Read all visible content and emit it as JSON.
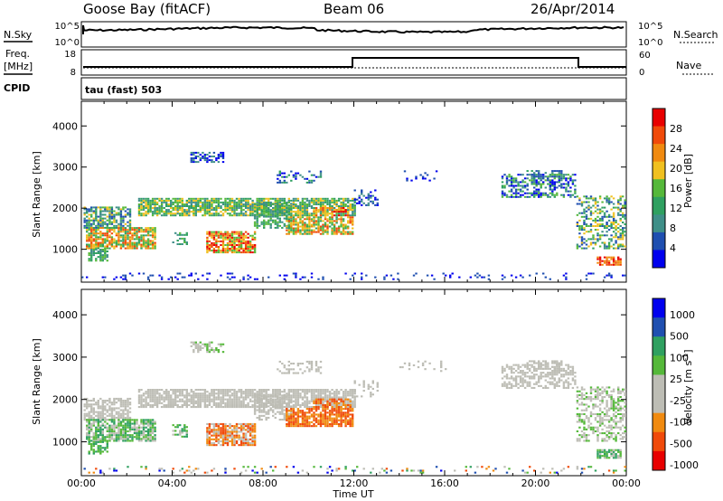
{
  "header": {
    "station": "Goose Bay (fitACF)",
    "beam": "Beam 06",
    "date": "26/Apr/2014"
  },
  "noise_panel": {
    "left_label": "N.Sky",
    "left_ticks": [
      "10^5",
      "10^0"
    ],
    "right_label": "N.Search",
    "right_ticks": [
      "10^5",
      "10^0"
    ]
  },
  "freq_panel": {
    "left_label_1": "Freq.",
    "left_label_2": "[MHz]",
    "left_ticks": [
      "18",
      "8"
    ],
    "right_label": "Nave",
    "right_ticks": [
      "60",
      "0"
    ]
  },
  "cpid": {
    "label": "CPID",
    "mode": "tau (fast) 503"
  },
  "colors": {
    "power_scale": [
      "#0000ee",
      "#1f4fb0",
      "#3f8f88",
      "#2fa060",
      "#55b83a",
      "#f0c020",
      "#f08a10",
      "#f04a0a",
      "#e80000"
    ],
    "velocity_scale": [
      "#e80000",
      "#f04a0a",
      "#f08a10",
      "#bdbdb5",
      "#bdbdb5",
      "#55b83a",
      "#2fa060",
      "#1f4fb0",
      "#0000ee"
    ]
  },
  "chart_data": [
    {
      "type": "heatmap",
      "title": "Power",
      "xlabel": "Time UT",
      "ylabel": "Slant Range [km]",
      "x_ticks": [
        "00:00",
        "04:00",
        "08:00",
        "12:00",
        "16:00",
        "20:00",
        "00:00"
      ],
      "y_ticks": [
        1000,
        2000,
        3000,
        4000
      ],
      "ylim": [
        200,
        4600
      ],
      "xlim_hours": [
        0,
        24
      ],
      "colorbar": {
        "label": "Power [dB]",
        "ticks": [
          4,
          8,
          12,
          16,
          20,
          24,
          28
        ],
        "range": [
          0,
          32
        ]
      }
    },
    {
      "type": "heatmap",
      "title": "Velocity",
      "xlabel": "Time UT",
      "ylabel": "Slant Range [km]",
      "x_ticks": [
        "00:00",
        "04:00",
        "08:00",
        "12:00",
        "16:00",
        "20:00",
        "00:00"
      ],
      "y_ticks": [
        1000,
        2000,
        3000,
        4000
      ],
      "ylim": [
        200,
        4600
      ],
      "xlim_hours": [
        0,
        24
      ],
      "colorbar": {
        "label": "Velocity [m s",
        "label_exp": "-1",
        "label_end": "]",
        "ticks": [
          "1000",
          "500",
          "100",
          "25",
          "-25",
          "-100",
          "-500",
          "-1000"
        ]
      }
    }
  ],
  "xaxis_label": "Time UT"
}
